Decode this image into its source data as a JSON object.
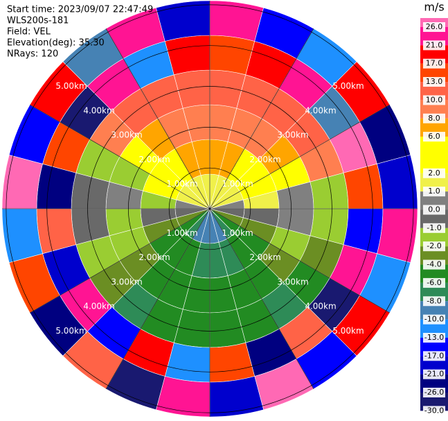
{
  "chart_data": {
    "type": "ppi",
    "header": [
      "Start time: 2023/09/07 22:47:49",
      "WLS200s-181",
      "Field: VEL",
      "Elevation(deg): 35.30",
      "NRays: 120"
    ],
    "colorbar_title": "m/s",
    "levels": [
      26.0,
      21.0,
      17.0,
      13.0,
      10.0,
      8.0,
      6.0,
      2.0,
      1.0,
      0.0,
      -1.0,
      -2.0,
      -4.0,
      -6.0,
      -8.0,
      -10.0,
      -13.0,
      -17.0,
      -21.0,
      -26.0,
      -30.0
    ],
    "level_labels": [
      "26.0",
      "21.0",
      "17.0",
      "13.0",
      "10.0",
      "8.0",
      "6.0",
      "2.0",
      "1.0",
      "0.0",
      "-1.0",
      "-2.0",
      "-4.0",
      "-6.0",
      "-8.0",
      "-10.0",
      "-13.0",
      "-17.0",
      "-21.0",
      "-26.0",
      "-30.0"
    ],
    "colors": [
      "#ff69b4",
      "#ff1493",
      "#ff0000",
      "#ff4500",
      "#ff6347",
      "#ff7f50",
      "#ffa500",
      "#ffff00",
      "#f0f04a",
      "#808080",
      "#696969",
      "#9acd32",
      "#6b8e23",
      "#228b22",
      "#2e8b57",
      "#4682b4",
      "#1e90ff",
      "#0000ff",
      "#0000cd",
      "#000080",
      "#191970"
    ],
    "rlim": [
      0,
      5.1
    ],
    "rticks": [
      {
        "value": 1,
        "label": "1.00km"
      },
      {
        "value": 2,
        "label": "2.00km"
      },
      {
        "value": 3,
        "label": "3.00km"
      },
      {
        "value": 4,
        "label": "4.00km"
      },
      {
        "value": 5,
        "label": "5.00km"
      }
    ],
    "values": [
      [
        1.5,
        7,
        9,
        11,
        15,
        23
      ],
      [
        1.5,
        7,
        9,
        11,
        19,
        -15
      ],
      [
        1.5,
        5,
        9,
        11,
        24,
        -11
      ],
      [
        1.5,
        3,
        7,
        11,
        -9,
        19
      ],
      [
        1.5,
        3,
        5,
        9,
        28,
        -23
      ],
      [
        0.5,
        1.5,
        0.5,
        -1.5,
        15,
        -19
      ],
      [
        -0.5,
        -0.5,
        0.5,
        -1.5,
        -15,
        24
      ],
      [
        -3,
        -3,
        -1.5,
        -3,
        23,
        -11
      ],
      [
        -5,
        -5,
        -3,
        -5,
        -28,
        19
      ],
      [
        -7,
        -5,
        -5,
        -7,
        11,
        -15
      ],
      [
        -9,
        -7,
        -5,
        -5,
        -23,
        28
      ],
      [
        -9,
        -7,
        -5,
        -5,
        15,
        -19
      ],
      [
        -9,
        -7,
        -5,
        -5,
        -11,
        23
      ],
      [
        -9,
        -5,
        -5,
        -5,
        19,
        -28
      ],
      [
        -7,
        -5,
        -5,
        -7,
        -15,
        11
      ],
      [
        -5,
        -5,
        -3,
        -3,
        24,
        -23
      ],
      [
        -3,
        -3,
        -1.5,
        -1.5,
        -19,
        15
      ],
      [
        -0.5,
        -0.5,
        -1.5,
        -0.5,
        11,
        -11
      ],
      [
        0.5,
        -1.5,
        0.5,
        -0.5,
        -23,
        28
      ],
      [
        1.5,
        3,
        -1.5,
        -1.5,
        15,
        -15
      ],
      [
        1.5,
        3,
        5,
        9,
        -28,
        19
      ],
      [
        1.5,
        5,
        7,
        11,
        23,
        -9
      ],
      [
        1.5,
        7,
        9,
        11,
        -11,
        24
      ],
      [
        1.5,
        7,
        9,
        11,
        19,
        -19
      ]
    ]
  }
}
